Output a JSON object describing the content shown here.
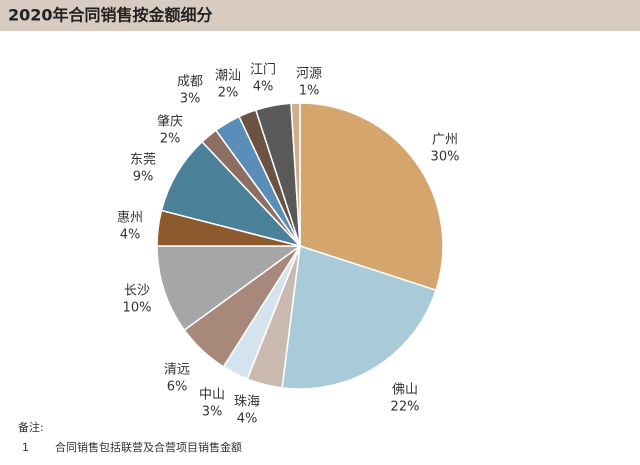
{
  "chart_data": {
    "type": "pie",
    "title": "2020年合同销售按金额细分",
    "categories": [
      "广州",
      "佛山",
      "珠海",
      "中山",
      "清远",
      "长沙",
      "惠州",
      "东莞",
      "肇庆",
      "成都",
      "潮汕",
      "江门",
      "河源"
    ],
    "values": [
      30,
      22,
      4,
      3,
      6,
      10,
      4,
      9,
      2,
      3,
      2,
      4,
      1
    ],
    "value_labels": [
      "30%",
      "22%",
      "4%",
      "3%",
      "6%",
      "10%",
      "4%",
      "9%",
      "2%",
      "3%",
      "2%",
      "4%",
      "1%"
    ],
    "colors": [
      "#d4a56c",
      "#a9cad8",
      "#c9b9af",
      "#d5e3ee",
      "#a8887a",
      "#a6a6a6",
      "#8c5a2c",
      "#4b8099",
      "#8d6e63",
      "#5b8db9",
      "#6b5344",
      "#595959",
      "#cfae8a"
    ],
    "notes": {
      "heading": "备注:",
      "number": "1",
      "text": "合同销售包括联营及合营项目销售金额"
    }
  }
}
